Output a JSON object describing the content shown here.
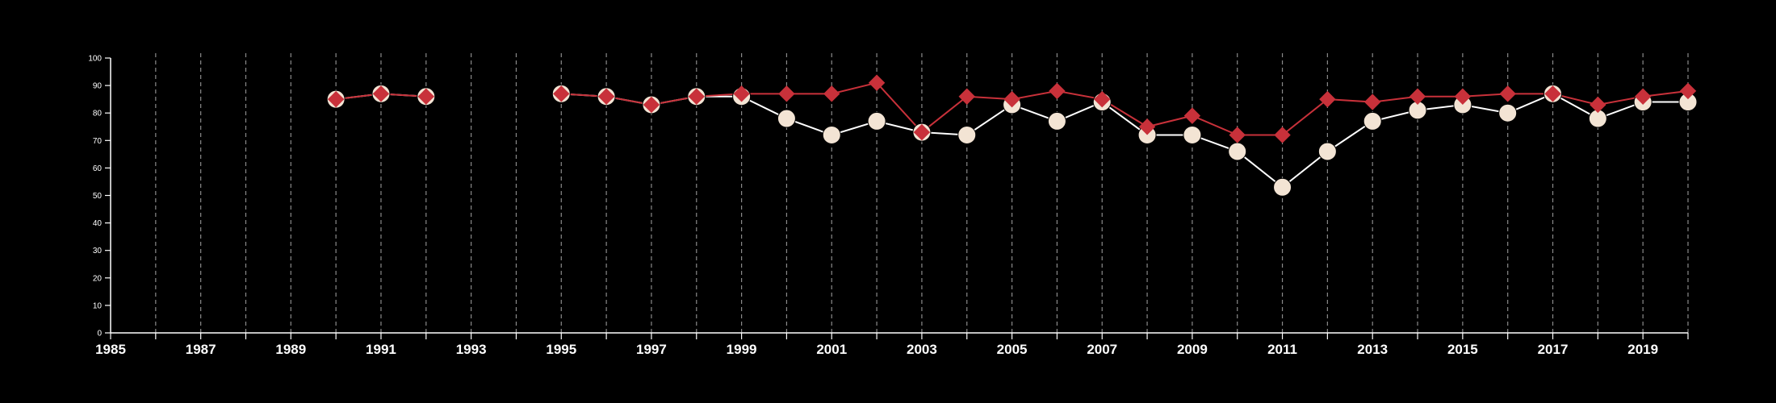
{
  "chart_data": {
    "type": "line",
    "x": [
      1990,
      1991,
      1992,
      1995,
      1996,
      1997,
      1998,
      1999,
      2000,
      2001,
      2002,
      2003,
      2004,
      2005,
      2006,
      2007,
      2008,
      2009,
      2010,
      2011,
      2012,
      2013,
      2014,
      2015,
      2016,
      2017,
      2018,
      2019,
      2020
    ],
    "series": [
      {
        "marker": "circle",
        "color": "#ffffff",
        "fill": "#f3e4d4",
        "values": [
          85,
          87,
          86,
          87,
          86,
          83,
          86,
          86,
          78,
          72,
          77,
          73,
          72,
          83,
          77,
          84,
          72,
          72,
          66,
          53,
          66,
          77,
          81,
          83,
          80,
          87,
          78,
          84,
          84
        ]
      },
      {
        "marker": "diamond",
        "color": "#c8313a",
        "fill": "#c8313a",
        "values": [
          85,
          87,
          86,
          87,
          86,
          83,
          86,
          87,
          87,
          87,
          91,
          73,
          86,
          85,
          88,
          85,
          75,
          79,
          72,
          72,
          85,
          84,
          86,
          86,
          87,
          87,
          83,
          86,
          88
        ]
      }
    ],
    "xlim": [
      1985,
      2020
    ],
    "ylim": [
      0,
      100
    ],
    "xticks": [
      1985,
      1987,
      1989,
      1991,
      1993,
      1995,
      1997,
      1999,
      2001,
      2003,
      2005,
      2007,
      2009,
      2011,
      2013,
      2015,
      2017,
      2019
    ],
    "yticks": [
      0,
      10,
      20,
      30,
      40,
      50,
      60,
      70,
      80,
      90,
      100
    ],
    "grid": "vertical dashed, every year",
    "background": "#000000",
    "title": "",
    "xlabel": "",
    "ylabel": ""
  }
}
